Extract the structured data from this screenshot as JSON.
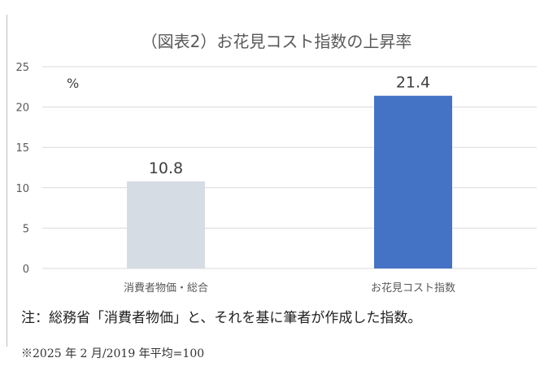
{
  "chart_data": {
    "type": "bar",
    "title": "（図表2）お花見コスト指数の上昇率",
    "ylabel": "%",
    "xlabel": "",
    "ylim": [
      0,
      25
    ],
    "yticks": [
      0,
      5,
      10,
      15,
      20,
      25
    ],
    "grid": true,
    "legend": "none",
    "categories": [
      "消費者物価・総合",
      "お花見コスト指数"
    ],
    "values": [
      10.8,
      21.4
    ],
    "data_labels": [
      "10.8",
      "21.4"
    ],
    "bar_colors": [
      "#d6dce4",
      "#4472c4"
    ]
  },
  "notes": {
    "source": "注：総務省「消費者物価」と、それを基に筆者が作成した指数。",
    "footnote": "※2025 年 2 月/2019 年平均=100"
  },
  "colors": {
    "gridline": "#d9d9d9",
    "axis_text": "#595959"
  }
}
